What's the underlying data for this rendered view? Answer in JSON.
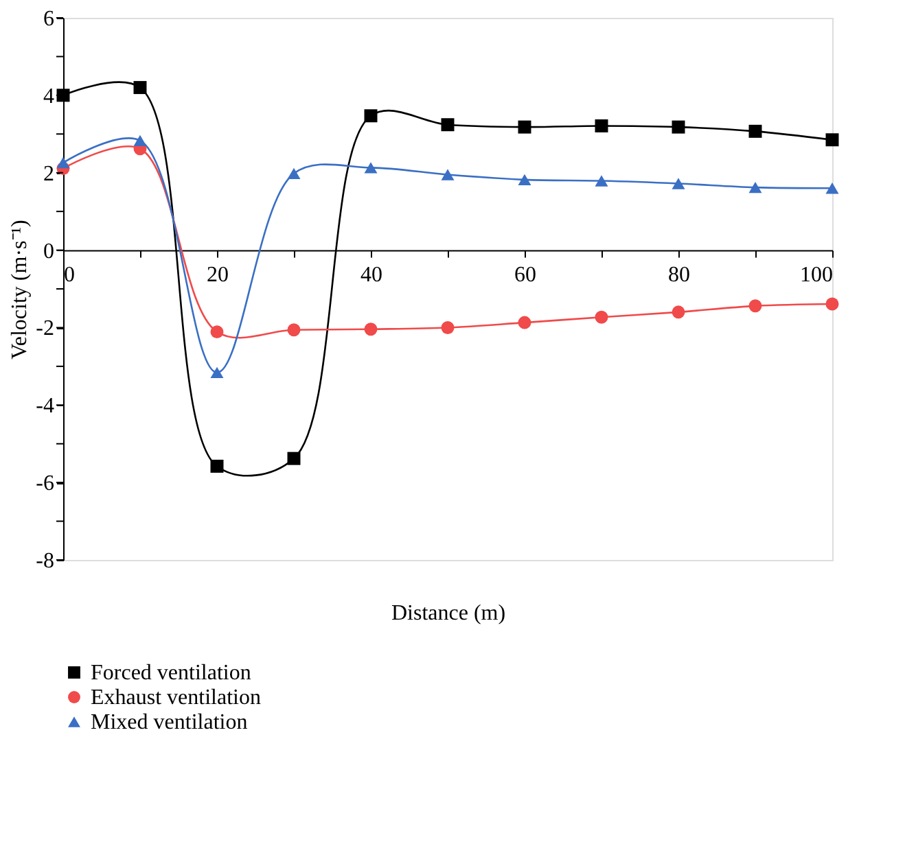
{
  "chart_data": {
    "type": "line",
    "xlabel": "Distance (m)",
    "ylabel": "Velocity (m·s⁻¹)",
    "x": [
      0,
      10,
      20,
      30,
      40,
      50,
      60,
      70,
      80,
      90,
      100
    ],
    "series": [
      {
        "name": "Forced ventilation",
        "color": "#000000",
        "marker": "square",
        "values": [
          4.0,
          4.2,
          -5.58,
          -5.38,
          3.47,
          3.24,
          3.18,
          3.21,
          3.18,
          3.07,
          2.85
        ]
      },
      {
        "name": "Exhaust ventilation",
        "color": "#f04a4a",
        "marker": "circle",
        "values": [
          2.11,
          2.62,
          -2.11,
          -2.06,
          -2.04,
          -2.0,
          -1.87,
          -1.73,
          -1.6,
          -1.44,
          -1.39
        ]
      },
      {
        "name": "Mixed ventilation",
        "color": "#3a6fc4",
        "marker": "triangle",
        "values": [
          2.26,
          2.83,
          -3.16,
          1.98,
          2.13,
          1.95,
          1.82,
          1.79,
          1.72,
          1.62,
          1.6
        ]
      }
    ],
    "xlim": [
      0,
      100
    ],
    "xticks": [
      0,
      {
        "value": 10,
        "label": null
      },
      20,
      {
        "value": 30,
        "label": null
      },
      40,
      {
        "value": 50,
        "label": null
      },
      60,
      {
        "value": 70,
        "label": null
      },
      80,
      {
        "value": 90,
        "label": null
      },
      100
    ],
    "ylim": [
      -8,
      6
    ],
    "yticks": [
      -8,
      {
        "value": -7,
        "label": null
      },
      -6,
      {
        "value": -5,
        "label": null
      },
      -4,
      {
        "value": -3,
        "label": null
      },
      -2,
      {
        "value": -1,
        "label": null
      },
      0,
      {
        "value": 1,
        "label": null
      },
      2,
      {
        "value": 3,
        "label": null
      },
      4,
      {
        "value": 5,
        "label": null
      },
      6
    ],
    "grid": false,
    "legend": "bottom left",
    "line_style": "solid"
  }
}
